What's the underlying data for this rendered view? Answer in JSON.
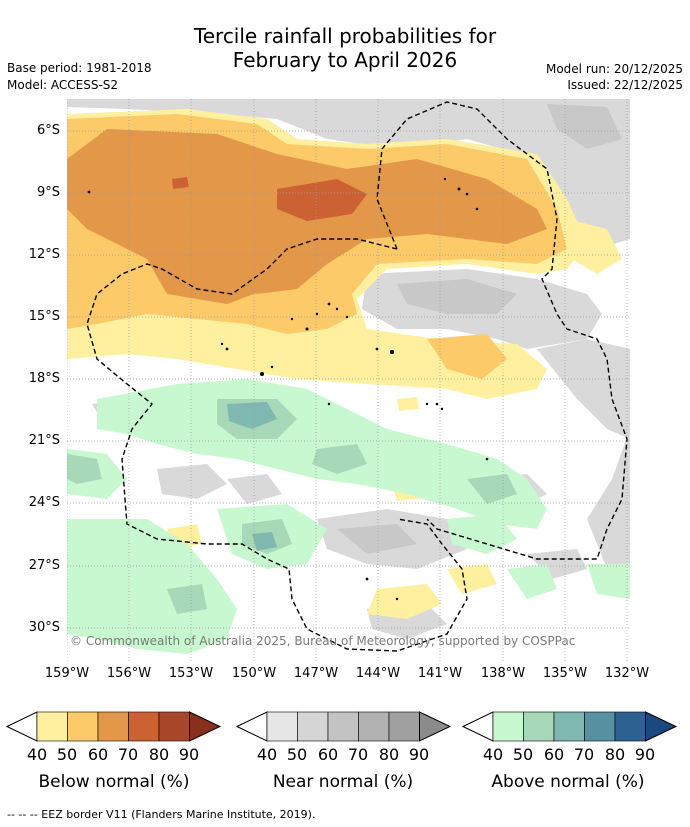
{
  "title": {
    "line1": "Tercile rainfall probabilities for",
    "line2": "February to April 2026"
  },
  "meta": {
    "base_period": "Base period: 1981-2018",
    "model": "Model: ACCESS-S2",
    "model_run": "Model run: 20/12/2025",
    "issued": "Issued: 22/12/2025"
  },
  "axes": {
    "lat_labels": [
      "6°S",
      "9°S",
      "12°S",
      "15°S",
      "18°S",
      "21°S",
      "24°S",
      "27°S",
      "30°S"
    ],
    "lon_labels": [
      "159°W",
      "156°W",
      "153°W",
      "150°W",
      "147°W",
      "144°W",
      "141°W",
      "138°W",
      "135°W",
      "132°W"
    ]
  },
  "copyright": "© Commonwealth of Australia 2025, Bureau of Meteorology, supported by COSPPac",
  "colorbars": [
    {
      "title": "Below normal (%)",
      "ticks": [
        "40",
        "50",
        "60",
        "70",
        "80",
        "90"
      ],
      "colors": [
        "#ffffff",
        "#fff0a0",
        "#fcca68",
        "#e39748",
        "#cc6233",
        "#a8472a",
        "#8a2f1d"
      ]
    },
    {
      "title": "Near normal (%)",
      "ticks": [
        "40",
        "50",
        "60",
        "70",
        "80",
        "90"
      ],
      "colors": [
        "#ffffff",
        "#e6e6e6",
        "#d5d5d5",
        "#c3c3c3",
        "#b2b2b2",
        "#a0a0a0",
        "#8b8b8b"
      ]
    },
    {
      "title": "Above normal (%)",
      "ticks": [
        "40",
        "50",
        "60",
        "70",
        "80",
        "90"
      ],
      "colors": [
        "#ffffff",
        "#c8f8cf",
        "#a7d8b8",
        "#7fb8b0",
        "#5892a2",
        "#2d6192",
        "#1c4880"
      ]
    }
  ],
  "footnote": "--  --  -- EEZ border V11 (Flanders Marine Institute, 2019)."
}
